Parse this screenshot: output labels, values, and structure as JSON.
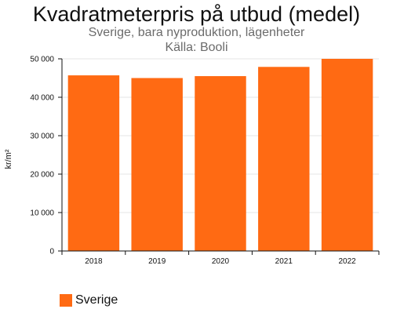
{
  "chart_data": {
    "type": "bar",
    "title": "Kvadratmeterpris på utbud (medel)",
    "subtitle": "Sverige, bara nyproduktion, lägenheter",
    "source": "Källa: Booli",
    "xlabel": "",
    "ylabel": "kr/m²",
    "categories": [
      "2018",
      "2019",
      "2020",
      "2021",
      "2022"
    ],
    "series": [
      {
        "name": "Sverige",
        "color": "#ff6a13",
        "values": [
          45700,
          45000,
          45500,
          47900,
          50000
        ]
      }
    ],
    "ylim": [
      0,
      50000
    ],
    "yticks": [
      0,
      10000,
      20000,
      30000,
      40000,
      50000
    ],
    "ytick_labels": [
      "0",
      "10 000",
      "20 000",
      "30 000",
      "40 000",
      "50 000"
    ],
    "grid": true,
    "legend_position": "bottom-left"
  }
}
